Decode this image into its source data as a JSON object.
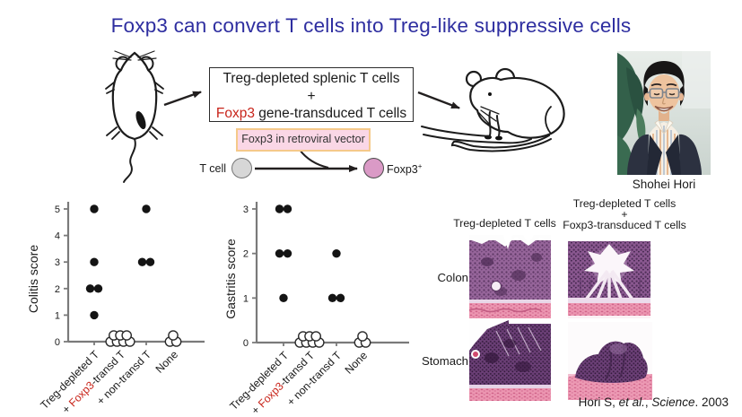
{
  "slide": {
    "title": "Foxp3 can convert T cells into Treg-like suppressive cells",
    "citation": {
      "pre": "Hori S, ",
      "etal": "et al.",
      "mid": ", ",
      "journal": "Science",
      "post": ". 2003"
    }
  },
  "diagram": {
    "cells_box": {
      "line1": "Treg-depleted splenic T cells",
      "line2": "+",
      "line3_red": "Foxp3",
      "line3_rest": " gene-transduced T cells"
    },
    "vector_box_label": "Foxp3 in retroviral vector",
    "tcell_label": "T cell",
    "foxp3_cell_label": "Foxp3",
    "foxp3_cell_sup": "+"
  },
  "photo": {
    "caption": "Shohei Hori"
  },
  "histology": {
    "col_headers": [
      [
        "Treg-depleted T cells"
      ],
      [
        "Treg-depleted T cells",
        "+",
        "Foxp3-transduced T cells"
      ]
    ],
    "row_labels": [
      "Colon",
      "Stomach"
    ]
  },
  "appearance": {
    "title_color": "#2e2ea0",
    "accent_red": "#c8241a",
    "vector_box_bg": "#fad7e6",
    "vector_box_border": "#f5c98a",
    "tcell_fill": "#d7d7d7",
    "foxp3_cell_fill": "#da9ac6",
    "axis_color": "#7a7a7a"
  },
  "chart_data": [
    {
      "type": "scatter",
      "title": "",
      "ylabel": "Colitis score",
      "xlabel": "",
      "ylim": [
        0,
        5
      ],
      "yticks": [
        0,
        1,
        2,
        3,
        4,
        5
      ],
      "categories": [
        "Treg-depleted T",
        "+ Foxp3-transd T",
        "+ non-transd T",
        "None"
      ],
      "red_substring": "Foxp3",
      "grid": false,
      "legend": false,
      "series": [
        {
          "category": "Treg-depleted T",
          "marker": "filled",
          "values": [
            5,
            3,
            2,
            2,
            1
          ]
        },
        {
          "category": "+ Foxp3-transd T",
          "marker": "open",
          "values": [
            0,
            0,
            0,
            0,
            0,
            0,
            0
          ]
        },
        {
          "category": "+ non-transd T",
          "marker": "filled",
          "values": [
            5,
            3,
            3
          ]
        },
        {
          "category": "None",
          "marker": "open",
          "values": [
            0,
            0,
            0
          ]
        }
      ]
    },
    {
      "type": "scatter",
      "title": "",
      "ylabel": "Gastritis score",
      "xlabel": "",
      "ylim": [
        0,
        3
      ],
      "yticks": [
        0,
        1,
        2,
        3
      ],
      "categories": [
        "Treg-depleted T",
        "+ Foxp3-transd T",
        "+ non-transd T",
        "None"
      ],
      "red_substring": "Foxp3",
      "grid": false,
      "legend": false,
      "series": [
        {
          "category": "Treg-depleted T",
          "marker": "filled",
          "values": [
            3,
            3,
            2,
            2,
            1
          ]
        },
        {
          "category": "+ Foxp3-transd T",
          "marker": "open",
          "values": [
            0,
            0,
            0,
            0,
            0,
            0,
            0
          ]
        },
        {
          "category": "+ non-transd T",
          "marker": "filled",
          "values": [
            2,
            1,
            1
          ]
        },
        {
          "category": "None",
          "marker": "open",
          "values": [
            0,
            0,
            0
          ]
        }
      ]
    }
  ]
}
